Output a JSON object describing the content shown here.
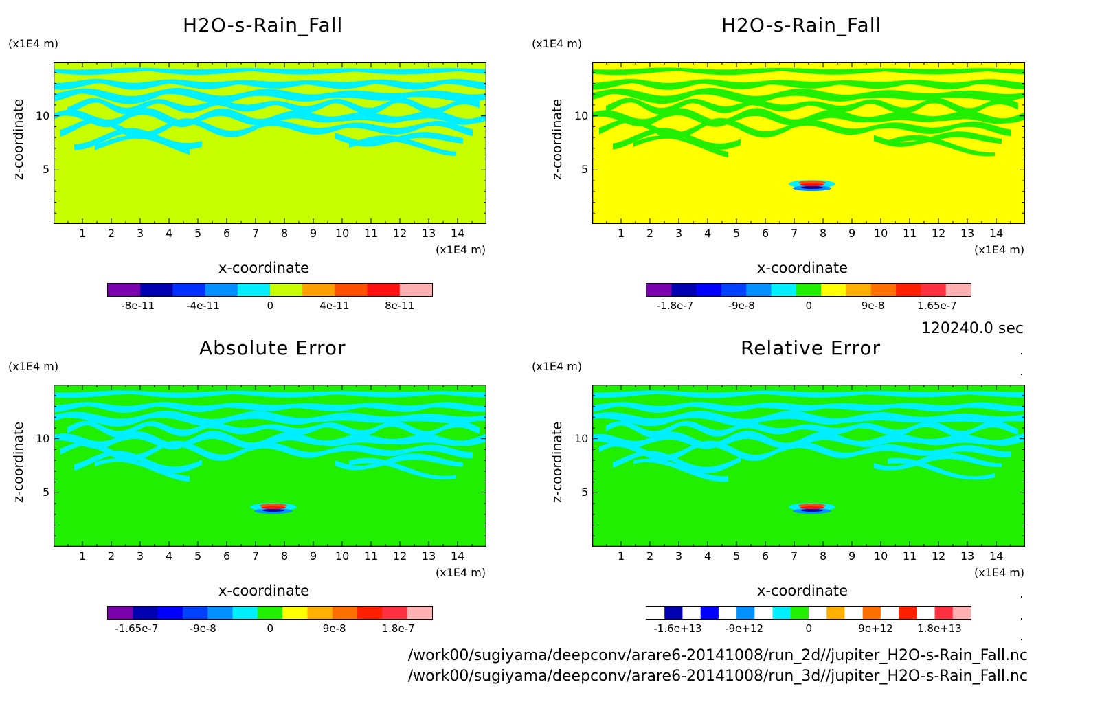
{
  "time_label": "120240.0 sec",
  "file_paths": [
    "/work00/sugiyama/deepconv/arare6-20141008/run_2d//jupiter_H2O-s-Rain_Fall.nc",
    "/work00/sugiyama/deepconv/arare6-20141008/run_3d//jupiter_H2O-s-Rain_Fall.nc"
  ],
  "chart_data": [
    {
      "type": "heatmap",
      "title": "H2O-s-Rain_Fall",
      "xlabel": "x-coordinate",
      "ylabel": "z-coordinate",
      "x_unit": "(x1E4 m)",
      "y_unit": "(x1E4 m)",
      "xlim": [
        0,
        15
      ],
      "ylim": [
        0,
        15
      ],
      "x_ticks": [
        "1",
        "2",
        "3",
        "4",
        "5",
        "6",
        "7",
        "8",
        "9",
        "10",
        "11",
        "12",
        "13",
        "14"
      ],
      "y_ticks": [
        "5",
        "10"
      ],
      "colorbar": {
        "colors": [
          "#7a00ad",
          "#0000b0",
          "#0030ff",
          "#0090ff",
          "#00f0ff",
          "#c8ff00",
          "#ffa000",
          "#ff5000",
          "#ff1010",
          "#ffb0b0"
        ],
        "tick_labels": [
          "-8e-11",
          "-4e-11",
          "0",
          "4e-11",
          "8e-11"
        ]
      },
      "background_color": "#c8ff00",
      "band_color": "#00f0ff",
      "has_central_anomaly": false
    },
    {
      "type": "heatmap",
      "title": "H2O-s-Rain_Fall",
      "xlabel": "x-coordinate",
      "ylabel": "z-coordinate",
      "x_unit": "(x1E4 m)",
      "y_unit": "(x1E4 m)",
      "xlim": [
        0,
        15
      ],
      "ylim": [
        0,
        15
      ],
      "x_ticks": [
        "1",
        "2",
        "3",
        "4",
        "5",
        "6",
        "7",
        "8",
        "9",
        "10",
        "11",
        "12",
        "13",
        "14"
      ],
      "y_ticks": [
        "5",
        "10"
      ],
      "colorbar": {
        "colors": [
          "#7a00ad",
          "#0000b0",
          "#0000ff",
          "#0040ff",
          "#0090ff",
          "#00f0ff",
          "#20f000",
          "#ffff00",
          "#ffb000",
          "#ff7000",
          "#ff2000",
          "#ff3040",
          "#ffb0b0"
        ],
        "tick_labels": [
          "-1.8e-7",
          "-9e-8",
          "0",
          "9e-8",
          "1.65e-7"
        ]
      },
      "background_color": "#ffff00",
      "band_color": "#20f000",
      "has_central_anomaly": true
    },
    {
      "type": "heatmap",
      "title": "Absolute Error",
      "xlabel": "x-coordinate",
      "ylabel": "z-coordinate",
      "x_unit": "(x1E4 m)",
      "y_unit": "(x1E4 m)",
      "xlim": [
        0,
        15
      ],
      "ylim": [
        0,
        15
      ],
      "x_ticks": [
        "1",
        "2",
        "3",
        "4",
        "5",
        "6",
        "7",
        "8",
        "9",
        "10",
        "11",
        "12",
        "13",
        "14"
      ],
      "y_ticks": [
        "5",
        "10"
      ],
      "colorbar": {
        "colors": [
          "#7a00ad",
          "#0000b0",
          "#0000ff",
          "#0040ff",
          "#0090ff",
          "#00f0ff",
          "#20f000",
          "#ffff00",
          "#ffb000",
          "#ff7000",
          "#ff2000",
          "#ff3040",
          "#ffb0b0"
        ],
        "tick_labels": [
          "-1.65e-7",
          "-9e-8",
          "0",
          "9e-8",
          "1.8e-7"
        ]
      },
      "background_color": "#20f000",
      "band_color": "#00f0ff",
      "has_central_anomaly": true
    },
    {
      "type": "heatmap",
      "title": "Relative Error",
      "xlabel": "x-coordinate",
      "ylabel": "z-coordinate",
      "x_unit": "(x1E4 m)",
      "y_unit": "(x1E4 m)",
      "xlim": [
        0,
        15
      ],
      "ylim": [
        0,
        15
      ],
      "x_ticks": [
        "1",
        "2",
        "3",
        "4",
        "5",
        "6",
        "7",
        "8",
        "9",
        "10",
        "11",
        "12",
        "13",
        "14"
      ],
      "y_ticks": [
        "5",
        "10"
      ],
      "colorbar": {
        "colors": [
          "#ffffff",
          "#0000b0",
          "#ffffff",
          "#0000ff",
          "#ffffff",
          "#0090ff",
          "#ffffff",
          "#00f0ff",
          "#20f000",
          "#ffffff",
          "#ffb000",
          "#ffffff",
          "#ff7000",
          "#ffffff",
          "#ff2000",
          "#ffffff",
          "#ff3040",
          "#ffb0b0"
        ],
        "tick_labels": [
          "-1.6e+13",
          "-9e+12",
          "0",
          "9e+12",
          "1.8e+13"
        ]
      },
      "background_color": "#20f000",
      "band_color": "#00f0ff",
      "has_central_anomaly": true
    }
  ]
}
